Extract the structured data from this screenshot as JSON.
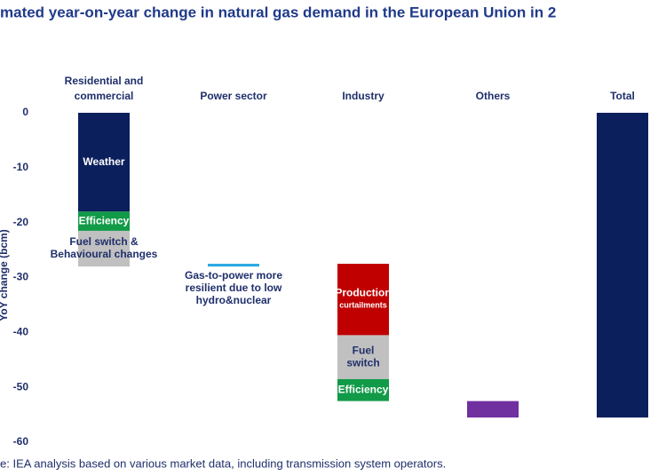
{
  "chart_data": {
    "type": "waterfall",
    "title": "mated year-on-year change in natural gas demand in the European Union in 2",
    "y_label": "YoY change (bcm)",
    "source": "e: IEA analysis based on various market data, including transmission system operators.",
    "categories": [
      [
        "Residential and",
        "commercial"
      ],
      [
        "Power sector"
      ],
      [
        "Industry"
      ],
      [
        "Others"
      ],
      [
        "Total"
      ]
    ],
    "segments": [
      {
        "category": 0,
        "label": [
          "Weather"
        ],
        "value": -18,
        "color": "#0b1f5c",
        "text_color": "#ffffff"
      },
      {
        "category": 0,
        "label": [
          "Efficiency"
        ],
        "value": -3.5,
        "color": "#119a48",
        "text_color": "#ffffff"
      },
      {
        "category": 0,
        "label": [
          "Fuel switch &",
          "Behavioural changes"
        ],
        "value": -6.5,
        "color": "#c0c0c0",
        "text_color": "#1f2f6b"
      },
      {
        "category": 1,
        "annotation": [
          "Gas-to-power more",
          "resilient due to low",
          "hydro&nuclear"
        ],
        "value": 0.5,
        "color": "#29aae1",
        "text_color": "#1f2f6b"
      },
      {
        "category": 2,
        "label": [
          "Production",
          "curtailments"
        ],
        "value": -13,
        "color": "#c00000",
        "text_color": "#ffffff"
      },
      {
        "category": 2,
        "label": [
          "Fuel",
          "switch"
        ],
        "value": -8,
        "color": "#c0c0c0",
        "text_color": "#1f2f6b"
      },
      {
        "category": 2,
        "label": [
          "Efficiency"
        ],
        "value": -4,
        "color": "#119a48",
        "text_color": "#ffffff"
      },
      {
        "category": 3,
        "value": -3,
        "color": "#7030a0",
        "text_color": "#ffffff"
      },
      {
        "category": 4,
        "value": -55.5,
        "color": "#0b1f5c",
        "text_color": "#ffffff",
        "total": true
      }
    ],
    "ylim": [
      -60,
      0
    ],
    "yticks": [
      0,
      -10,
      -20,
      -30,
      -40,
      -50,
      -60
    ],
    "grid": false
  }
}
